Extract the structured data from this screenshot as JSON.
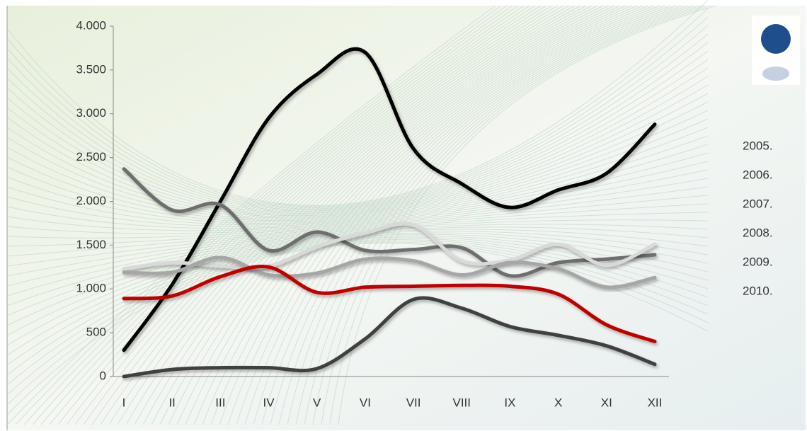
{
  "chart_data": {
    "type": "line",
    "categories": [
      "I",
      "II",
      "III",
      "IV",
      "V",
      "VI",
      "VII",
      "VIII",
      "IX",
      "X",
      "XI",
      "XII"
    ],
    "ylim": [
      0,
      4000
    ],
    "yticks": [
      0,
      500,
      {
        "value": 1000,
        "label": "1.000"
      },
      {
        "value": 1500,
        "label": "1.500"
      },
      {
        "value": 2000,
        "label": "2.000"
      },
      {
        "value": 2500,
        "label": "2.500"
      },
      {
        "value": 3000,
        "label": "3.000"
      },
      {
        "value": 3500,
        "label": "3.500"
      },
      {
        "value": 4000,
        "label": "4.000"
      }
    ],
    "grid": false,
    "legend": "right",
    "series": [
      {
        "name": "2005.",
        "color": "#404040",
        "values": [
          0,
          80,
          100,
          100,
          90,
          430,
          880,
          780,
          570,
          470,
          350,
          140
        ]
      },
      {
        "name": "2006.",
        "color": "#000000",
        "values": [
          300,
          1050,
          2000,
          2950,
          3450,
          3700,
          2600,
          2200,
          1930,
          2130,
          2320,
          2880
        ]
      },
      {
        "name": "2007.",
        "color": "#6e6e6e",
        "values": [
          2370,
          1900,
          1960,
          1440,
          1650,
          1440,
          1450,
          1470,
          1150,
          1300,
          1340,
          1390
        ]
      },
      {
        "name": "2008.",
        "color": "#d9d9d9",
        "values": [
          1230,
          1300,
          1260,
          1260,
          1480,
          1640,
          1730,
          1320,
          1330,
          1510,
          1270,
          1510
        ]
      },
      {
        "name": "2009.",
        "color": "#a6a6a6",
        "values": [
          1190,
          1190,
          1360,
          1160,
          1180,
          1340,
          1320,
          1160,
          1300,
          1230,
          1020,
          1130
        ]
      },
      {
        "name": "2010.",
        "color": "#c00000",
        "values": [
          890,
          920,
          1140,
          1250,
          960,
          1020,
          1030,
          1040,
          1030,
          940,
          590,
          400
        ]
      }
    ]
  }
}
